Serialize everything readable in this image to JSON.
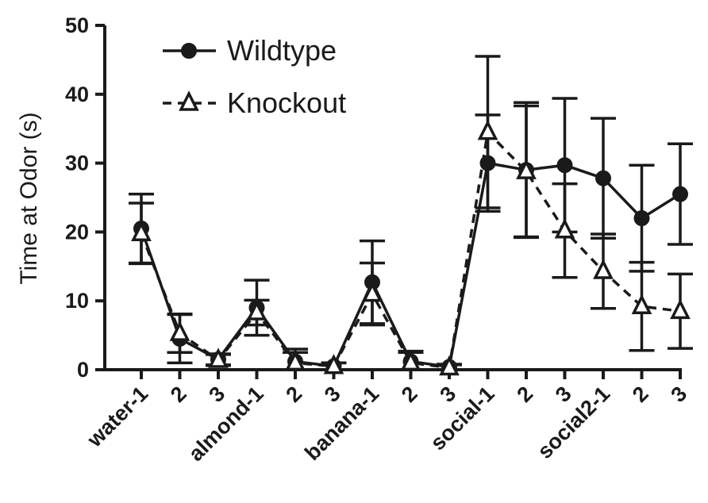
{
  "chart_data": {
    "type": "line",
    "title": "",
    "xlabel": "",
    "ylabel": "Time at Odor (s)",
    "ylim": [
      0,
      50
    ],
    "yticks": [
      "0",
      "10",
      "20",
      "30",
      "40",
      "50"
    ],
    "categories": [
      "water-1",
      "2",
      "3",
      "almond-1",
      "2",
      "3",
      "banana-1",
      "2",
      "3",
      "social-1",
      "2",
      "3",
      "social2-1",
      "2",
      "3"
    ],
    "legend_position": "top-left",
    "grid": false,
    "series": [
      {
        "name": "Wildtype",
        "marker": "circle",
        "line": "solid",
        "values": [
          20.5,
          4.5,
          1.5,
          9.0,
          1.2,
          0.5,
          12.7,
          1.2,
          0.4,
          30.0,
          29.0,
          29.7,
          27.8,
          22.0,
          25.5
        ],
        "err": [
          5.0,
          3.5,
          0.8,
          4.0,
          1.8,
          0.5,
          6.0,
          1.5,
          0.4,
          7.0,
          9.8,
          9.7,
          8.7,
          7.7,
          7.3
        ]
      },
      {
        "name": "Knockout",
        "marker": "triangle",
        "line": "dashed",
        "values": [
          19.8,
          5.3,
          1.4,
          8.3,
          1.0,
          0.5,
          11.0,
          1.0,
          0.3,
          34.5,
          28.8,
          20.2,
          14.3,
          9.2,
          8.5
        ],
        "err": [
          4.4,
          2.8,
          0.8,
          1.8,
          1.5,
          0.5,
          4.5,
          1.5,
          0.4,
          11.0,
          9.5,
          6.8,
          5.4,
          6.4,
          5.4
        ]
      }
    ]
  }
}
